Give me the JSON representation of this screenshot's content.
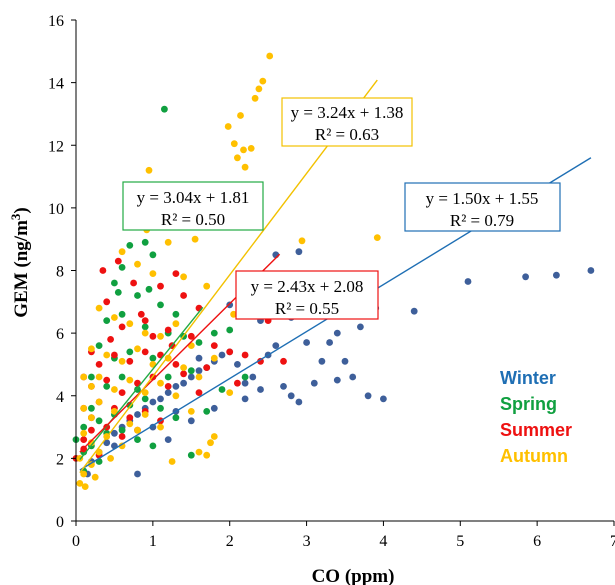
{
  "chart_data": {
    "type": "scatter",
    "title": "",
    "xlabel": "CO (ppm)",
    "ylabel_main": "GEM (ng/m",
    "ylabel_sup": "3",
    "ylabel_close": ")",
    "xlim": [
      0,
      7
    ],
    "ylim": [
      0,
      16
    ],
    "xticks": [
      "0",
      "1",
      "2",
      "3",
      "4",
      "5",
      "6",
      "7"
    ],
    "yticks": [
      "0",
      "2",
      "4",
      "6",
      "8",
      "10",
      "12",
      "14",
      "16"
    ],
    "grid": false,
    "legend_position": "lower-right",
    "series": [
      {
        "name": "Winter",
        "color": "#3e5f9a",
        "line_color": "#1f6fb4",
        "equation": "y = 1.50x + 1.55",
        "r2": "R² = 0.79",
        "slope": 1.5,
        "intercept": 1.55,
        "fit_x": [
          0.05,
          6.7
        ],
        "points": [
          [
            0.2,
            1.9
          ],
          [
            0.3,
            2.2
          ],
          [
            0.4,
            2.5
          ],
          [
            0.5,
            2.8
          ],
          [
            0.6,
            3.0
          ],
          [
            0.7,
            3.2
          ],
          [
            0.8,
            3.4
          ],
          [
            0.9,
            3.6
          ],
          [
            1.0,
            3.8
          ],
          [
            1.1,
            3.9
          ],
          [
            1.2,
            4.1
          ],
          [
            1.3,
            4.3
          ],
          [
            1.4,
            4.4
          ],
          [
            1.5,
            4.6
          ],
          [
            1.6,
            4.8
          ],
          [
            1.7,
            4.9
          ],
          [
            1.8,
            5.1
          ],
          [
            1.9,
            5.3
          ],
          [
            2.0,
            5.4
          ],
          [
            2.1,
            5.0
          ],
          [
            2.2,
            4.4
          ],
          [
            2.3,
            4.6
          ],
          [
            2.4,
            4.2
          ],
          [
            2.5,
            5.3
          ],
          [
            2.6,
            5.6
          ],
          [
            2.7,
            4.3
          ],
          [
            2.8,
            4.0
          ],
          [
            2.9,
            3.8
          ],
          [
            3.0,
            5.7
          ],
          [
            3.1,
            4.4
          ],
          [
            3.2,
            5.1
          ],
          [
            3.3,
            5.7
          ],
          [
            3.4,
            6.0
          ],
          [
            3.5,
            5.1
          ],
          [
            3.6,
            4.6
          ],
          [
            3.7,
            6.2
          ],
          [
            3.8,
            4.0
          ],
          [
            3.9,
            6.8
          ],
          [
            4.0,
            3.9
          ],
          [
            4.4,
            6.7
          ],
          [
            5.1,
            7.65
          ],
          [
            5.85,
            7.8
          ],
          [
            6.25,
            7.85
          ],
          [
            6.7,
            8.0
          ],
          [
            0.8,
            1.5
          ],
          [
            1.2,
            2.6
          ],
          [
            1.5,
            3.2
          ],
          [
            1.8,
            3.6
          ],
          [
            2.2,
            3.9
          ],
          [
            2.6,
            8.5
          ],
          [
            2.9,
            8.6
          ],
          [
            2.0,
            6.9
          ],
          [
            1.6,
            5.2
          ],
          [
            2.4,
            6.4
          ],
          [
            3.4,
            4.5
          ],
          [
            0.15,
            1.5
          ],
          [
            0.5,
            2.4
          ],
          [
            1.0,
            3.0
          ],
          [
            1.3,
            3.5
          ],
          [
            2.8,
            6.5
          ]
        ]
      },
      {
        "name": "Spring",
        "color": "#10a040",
        "line_color": "#22aa44",
        "equation": "y = 3.04x + 1.81",
        "r2": "R² = 0.50",
        "slope": 3.04,
        "intercept": 1.81,
        "fit_x": [
          0.05,
          1.65
        ],
        "points": [
          [
            1.15,
            13.15
          ],
          [
            0.9,
            8.9
          ],
          [
            0.7,
            8.8
          ],
          [
            1.0,
            8.5
          ],
          [
            0.6,
            8.1
          ],
          [
            0.5,
            7.6
          ],
          [
            0.8,
            7.2
          ],
          [
            1.1,
            6.9
          ],
          [
            1.3,
            6.6
          ],
          [
            0.4,
            6.4
          ],
          [
            0.6,
            6.6
          ],
          [
            0.9,
            6.2
          ],
          [
            1.2,
            6.0
          ],
          [
            1.4,
            5.9
          ],
          [
            0.3,
            5.6
          ],
          [
            0.5,
            5.2
          ],
          [
            0.7,
            5.4
          ],
          [
            1.0,
            5.2
          ],
          [
            1.6,
            5.7
          ],
          [
            1.8,
            6.0
          ],
          [
            2.0,
            6.1
          ],
          [
            0.2,
            4.6
          ],
          [
            0.4,
            4.3
          ],
          [
            0.6,
            4.6
          ],
          [
            0.8,
            4.2
          ],
          [
            1.2,
            4.6
          ],
          [
            1.5,
            4.8
          ],
          [
            1.9,
            4.2
          ],
          [
            2.2,
            4.6
          ],
          [
            0.1,
            3.0
          ],
          [
            0.2,
            3.6
          ],
          [
            0.3,
            3.2
          ],
          [
            0.5,
            3.4
          ],
          [
            0.7,
            3.7
          ],
          [
            0.9,
            3.9
          ],
          [
            1.1,
            3.6
          ],
          [
            1.3,
            3.3
          ],
          [
            1.7,
            3.5
          ],
          [
            0.0,
            2.6
          ],
          [
            0.1,
            2.2
          ],
          [
            0.2,
            2.4
          ],
          [
            0.4,
            2.8
          ],
          [
            0.6,
            2.9
          ],
          [
            0.8,
            2.6
          ],
          [
            1.0,
            2.4
          ],
          [
            0.1,
            1.6
          ],
          [
            0.3,
            1.9
          ],
          [
            1.5,
            2.1
          ],
          [
            0.55,
            7.3
          ],
          [
            0.95,
            7.4
          ]
        ]
      },
      {
        "name": "Summer",
        "color": "#ee1111",
        "line_color": "#ee1111",
        "equation": "y = 2.43x + 2.08",
        "r2": "R² = 0.55",
        "slope": 2.43,
        "intercept": 2.08,
        "fit_x": [
          0.05,
          2.65
        ],
        "points": [
          [
            0.35,
            8.0
          ],
          [
            0.55,
            8.3
          ],
          [
            0.75,
            7.6
          ],
          [
            1.1,
            7.5
          ],
          [
            1.3,
            7.9
          ],
          [
            1.4,
            7.2
          ],
          [
            1.6,
            6.8
          ],
          [
            0.4,
            7.0
          ],
          [
            0.6,
            6.2
          ],
          [
            0.9,
            6.4
          ],
          [
            1.2,
            6.1
          ],
          [
            1.5,
            5.9
          ],
          [
            1.8,
            5.6
          ],
          [
            2.0,
            5.4
          ],
          [
            2.2,
            5.3
          ],
          [
            2.4,
            5.1
          ],
          [
            0.2,
            5.4
          ],
          [
            0.3,
            5.0
          ],
          [
            0.5,
            5.3
          ],
          [
            0.7,
            5.1
          ],
          [
            0.9,
            5.4
          ],
          [
            1.1,
            5.3
          ],
          [
            1.3,
            5.0
          ],
          [
            1.7,
            4.9
          ],
          [
            0.1,
            4.6
          ],
          [
            0.2,
            4.3
          ],
          [
            0.4,
            4.5
          ],
          [
            0.6,
            4.1
          ],
          [
            0.8,
            4.4
          ],
          [
            1.0,
            4.6
          ],
          [
            1.2,
            4.3
          ],
          [
            1.4,
            4.7
          ],
          [
            1.6,
            4.1
          ],
          [
            0.1,
            3.6
          ],
          [
            0.2,
            3.3
          ],
          [
            0.3,
            3.8
          ],
          [
            0.5,
            3.6
          ],
          [
            0.7,
            3.3
          ],
          [
            0.9,
            3.5
          ],
          [
            1.1,
            3.2
          ],
          [
            0.1,
            2.6
          ],
          [
            0.2,
            2.9
          ],
          [
            0.4,
            3.0
          ],
          [
            0.6,
            2.7
          ],
          [
            0.8,
            2.9
          ],
          [
            0.0,
            2.0
          ],
          [
            0.1,
            2.3
          ],
          [
            0.3,
            2.1
          ],
          [
            1.0,
            5.9
          ],
          [
            2.5,
            6.4
          ],
          [
            2.7,
            5.1
          ],
          [
            2.1,
            4.4
          ],
          [
            0.45,
            5.8
          ],
          [
            0.85,
            6.6
          ],
          [
            1.25,
            5.6
          ]
        ]
      },
      {
        "name": "Autumn",
        "color": "#ffc000",
        "line_color": "#f2c100",
        "equation": "y = 3.24x + 1.38",
        "r2": "R² = 0.63",
        "slope": 3.24,
        "intercept": 1.38,
        "fit_x": [
          0.05,
          3.92
        ],
        "points": [
          [
            2.52,
            14.85
          ],
          [
            2.43,
            14.05
          ],
          [
            2.38,
            13.8
          ],
          [
            2.33,
            13.5
          ],
          [
            2.14,
            12.95
          ],
          [
            1.98,
            12.6
          ],
          [
            2.06,
            12.05
          ],
          [
            2.18,
            11.85
          ],
          [
            2.28,
            11.9
          ],
          [
            2.1,
            11.6
          ],
          [
            2.2,
            11.3
          ],
          [
            0.95,
            11.2
          ],
          [
            3.92,
            9.05
          ],
          [
            2.94,
            8.95
          ],
          [
            0.72,
            9.6
          ],
          [
            0.92,
            9.3
          ],
          [
            1.55,
            9.0
          ],
          [
            1.2,
            8.9
          ],
          [
            0.6,
            8.6
          ],
          [
            0.8,
            8.2
          ],
          [
            1.0,
            7.9
          ],
          [
            1.4,
            7.8
          ],
          [
            1.7,
            7.5
          ],
          [
            2.05,
            6.6
          ],
          [
            2.3,
            6.9
          ],
          [
            0.3,
            6.8
          ],
          [
            0.5,
            6.5
          ],
          [
            0.7,
            6.3
          ],
          [
            0.9,
            6.0
          ],
          [
            1.1,
            5.9
          ],
          [
            1.3,
            6.3
          ],
          [
            1.5,
            5.6
          ],
          [
            1.8,
            5.2
          ],
          [
            0.2,
            5.5
          ],
          [
            0.4,
            5.3
          ],
          [
            0.6,
            5.1
          ],
          [
            0.8,
            5.5
          ],
          [
            1.0,
            5.0
          ],
          [
            1.2,
            5.2
          ],
          [
            1.4,
            4.9
          ],
          [
            1.6,
            4.6
          ],
          [
            0.1,
            4.6
          ],
          [
            0.2,
            4.3
          ],
          [
            0.3,
            4.6
          ],
          [
            0.5,
            4.2
          ],
          [
            0.7,
            4.5
          ],
          [
            0.9,
            4.1
          ],
          [
            1.1,
            4.4
          ],
          [
            1.3,
            4.0
          ],
          [
            0.1,
            3.6
          ],
          [
            0.2,
            3.3
          ],
          [
            0.3,
            3.8
          ],
          [
            0.5,
            3.5
          ],
          [
            0.7,
            3.1
          ],
          [
            0.9,
            3.4
          ],
          [
            1.1,
            3.0
          ],
          [
            1.5,
            3.5
          ],
          [
            0.1,
            2.8
          ],
          [
            0.2,
            2.5
          ],
          [
            0.4,
            2.7
          ],
          [
            0.6,
            2.4
          ],
          [
            0.8,
            2.9
          ],
          [
            0.05,
            2.0
          ],
          [
            0.1,
            1.5
          ],
          [
            0.2,
            1.8
          ],
          [
            0.3,
            2.2
          ],
          [
            0.05,
            1.2
          ],
          [
            0.12,
            1.1
          ],
          [
            1.25,
            1.9
          ],
          [
            1.6,
            2.2
          ],
          [
            1.75,
            2.5
          ],
          [
            1.8,
            2.7
          ],
          [
            1.7,
            2.1
          ],
          [
            2.0,
            4.1
          ],
          [
            0.25,
            1.4
          ],
          [
            0.45,
            2.0
          ]
        ]
      }
    ],
    "annotations": [
      {
        "series": "Autumn",
        "equation": "y = 3.24x + 1.38",
        "r2": "R² = 0.63",
        "border": "#f2c100"
      },
      {
        "series": "Spring",
        "equation": "y = 3.04x + 1.81",
        "r2": "R² = 0.50",
        "border": "#22aa44"
      },
      {
        "series": "Winter",
        "equation": "y = 1.50x + 1.55",
        "r2": "R² = 0.79",
        "border": "#1f6fb4"
      },
      {
        "series": "Summer",
        "equation": "y = 2.43x + 2.08",
        "r2": "R² = 0.55",
        "border": "#ee1111"
      }
    ]
  }
}
